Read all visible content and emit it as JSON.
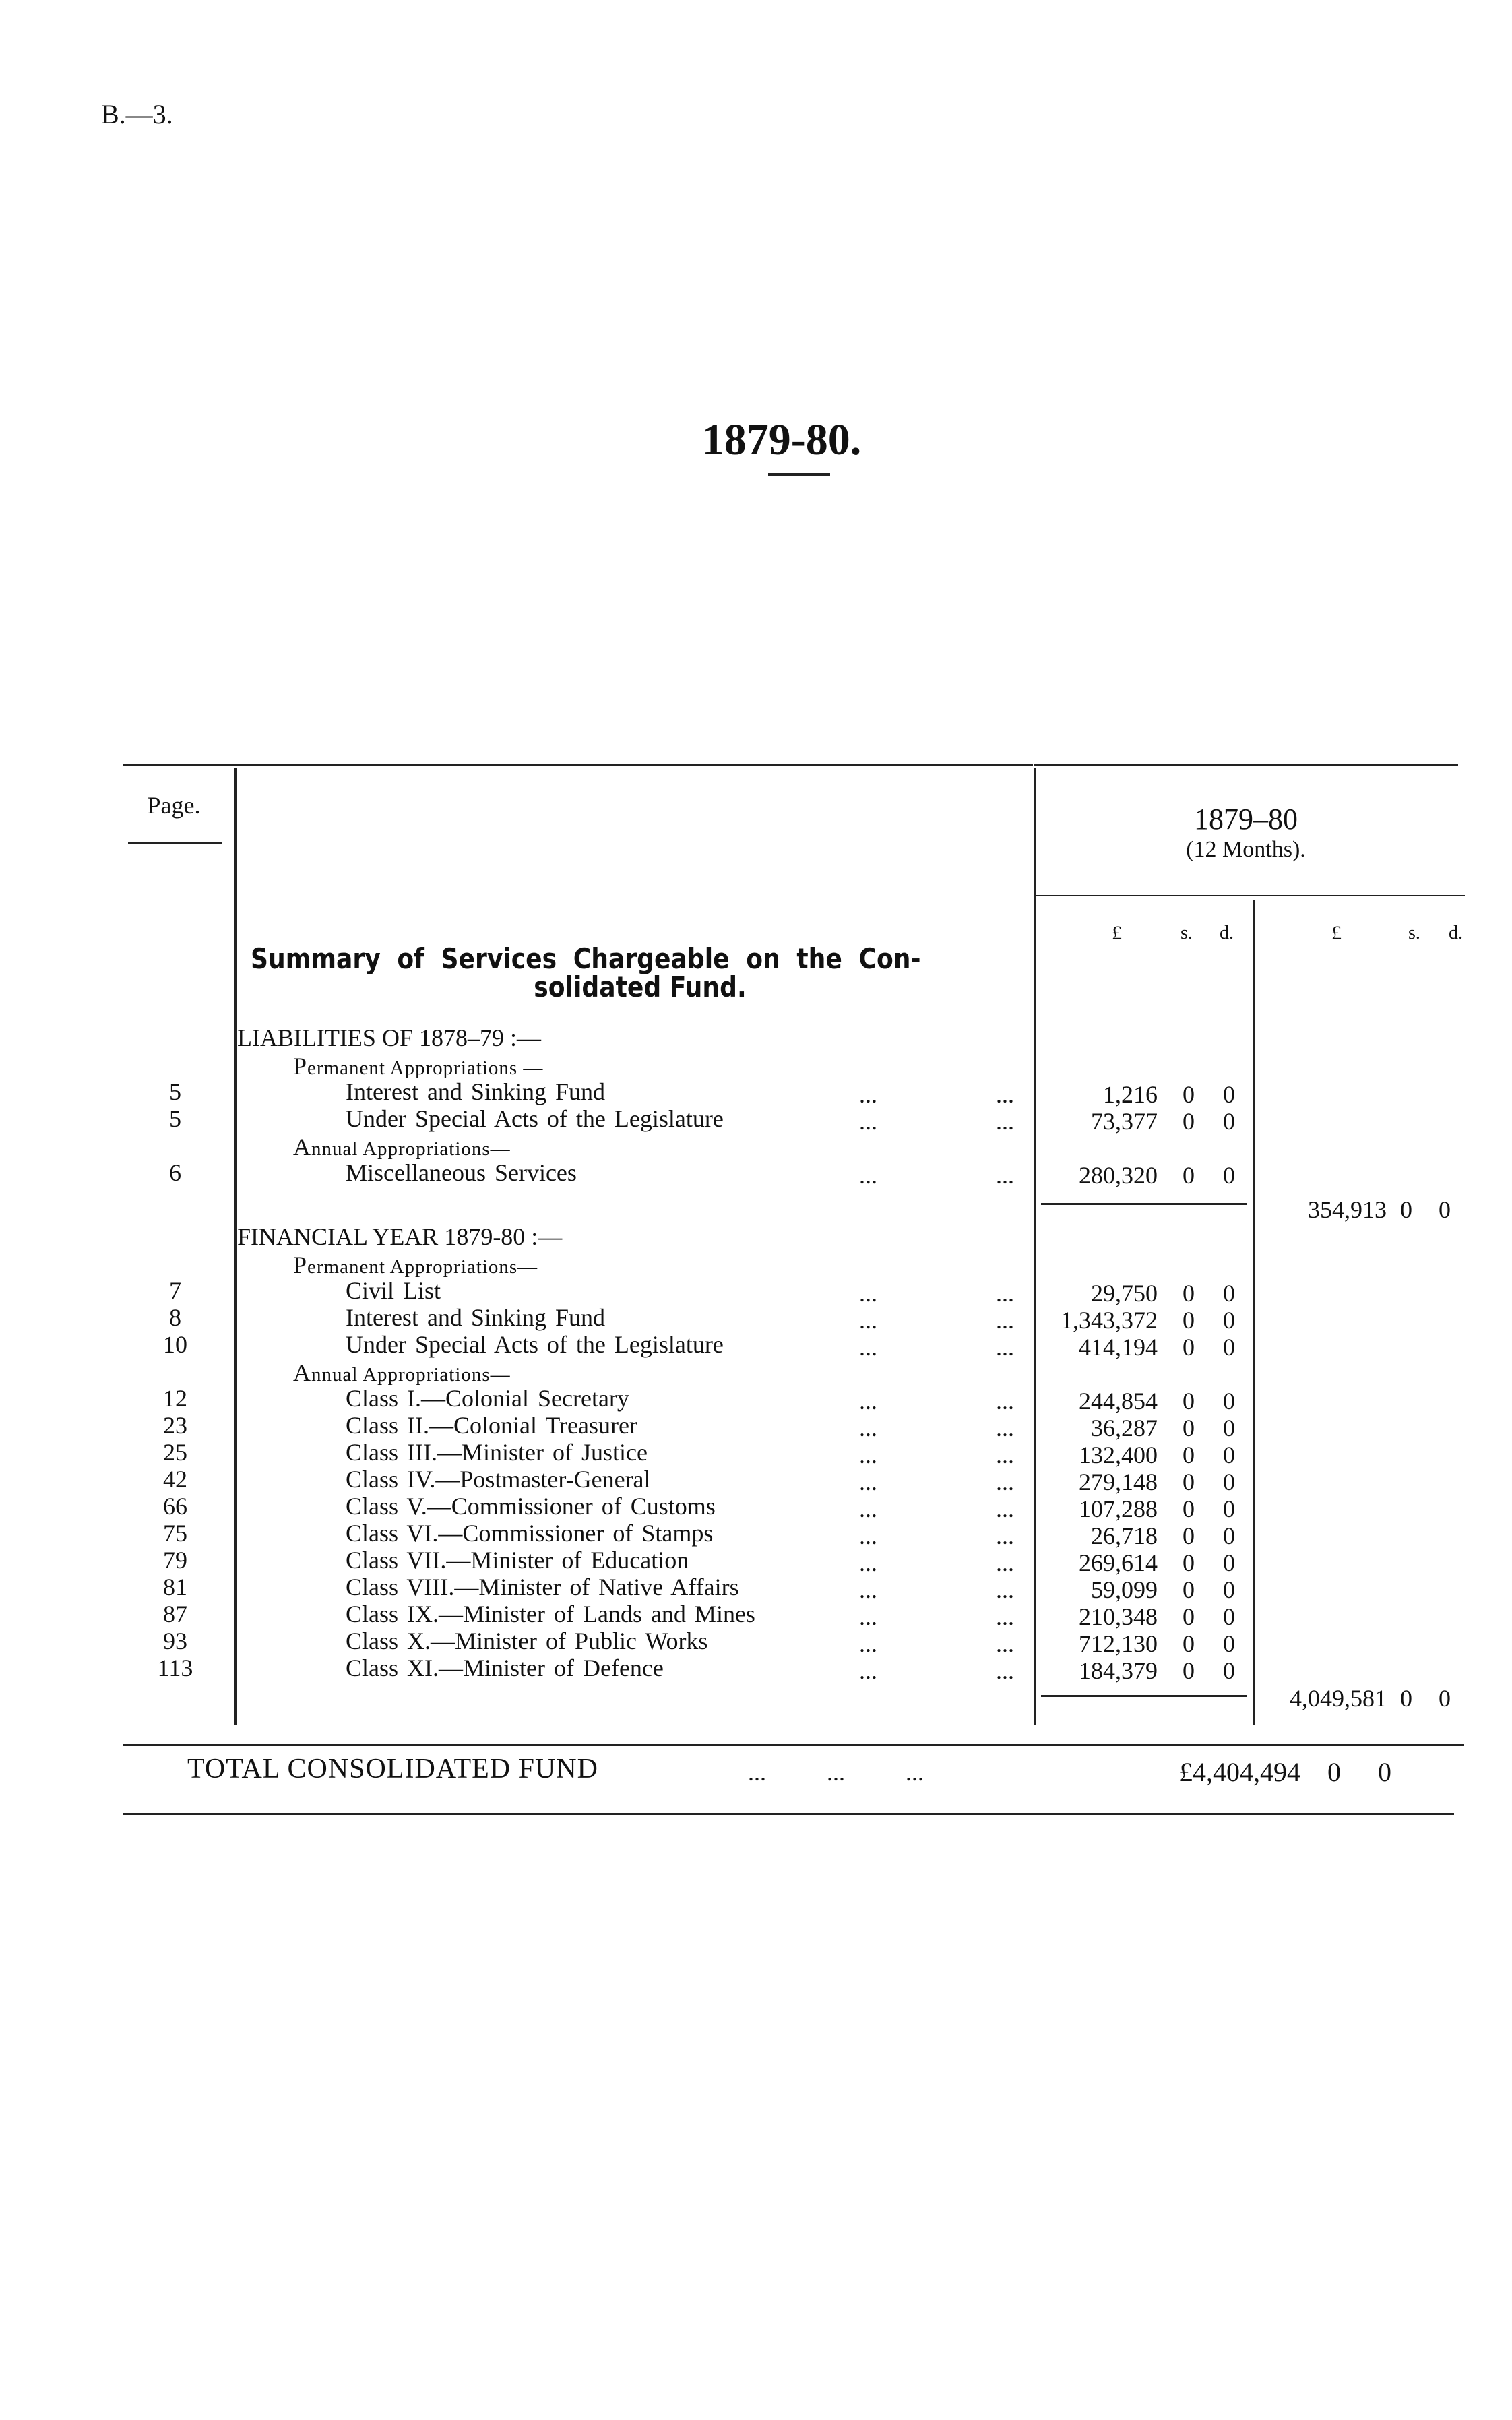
{
  "page_ref": "B.—3.",
  "title": "1879-80.",
  "table": {
    "page_header": "Page.",
    "period_header": "1879–80",
    "period_sub": "(12 Months).",
    "currency_headers": {
      "pounds": "£",
      "shillings": "s.",
      "pence": "d."
    },
    "summary_title_line1": "Summary of Services Chargeable on the Con-",
    "summary_title_line2": "solidated Fund.",
    "sections": [
      {
        "heading": "LIABILITIES OF 1878–79 :—",
        "groups": [
          {
            "heading": "Permanent Appropriations —",
            "items": [
              {
                "page": "5",
                "label": "Interest and Sinking Fund",
                "amount": "1,216",
                "s": "0",
                "d": "0"
              },
              {
                "page": "5",
                "label": "Under Special Acts of the Legislature",
                "amount": "73,377",
                "s": "0",
                "d": "0"
              }
            ]
          },
          {
            "heading": "Annual Appropriations—",
            "items": [
              {
                "page": "6",
                "label": "Miscellaneous Services",
                "amount": "280,320",
                "s": "0",
                "d": "0"
              }
            ]
          }
        ],
        "total": {
          "amount": "354,913",
          "s": "0",
          "d": "0"
        }
      },
      {
        "heading": "FINANCIAL YEAR 1879-80 :—",
        "groups": [
          {
            "heading": "Permanent Appropriations—",
            "items": [
              {
                "page": "7",
                "label": "Civil List",
                "amount": "29,750",
                "s": "0",
                "d": "0"
              },
              {
                "page": "8",
                "label": "Interest and Sinking Fund",
                "amount": "1,343,372",
                "s": "0",
                "d": "0"
              },
              {
                "page": "10",
                "label": "Under Special Acts of the Legislature",
                "amount": "414,194",
                "s": "0",
                "d": "0"
              }
            ]
          },
          {
            "heading": "Annual Appropriations—",
            "items": [
              {
                "page": "12",
                "label": "Class I.—Colonial Secretary",
                "amount": "244,854",
                "s": "0",
                "d": "0"
              },
              {
                "page": "23",
                "label": "Class II.—Colonial Treasurer",
                "amount": "36,287",
                "s": "0",
                "d": "0"
              },
              {
                "page": "25",
                "label": "Class III.—Minister of Justice",
                "amount": "132,400",
                "s": "0",
                "d": "0"
              },
              {
                "page": "42",
                "label": "Class IV.—Postmaster-General",
                "amount": "279,148",
                "s": "0",
                "d": "0"
              },
              {
                "page": "66",
                "label": "Class V.—Commissioner of Customs",
                "amount": "107,288",
                "s": "0",
                "d": "0"
              },
              {
                "page": "75",
                "label": "Class VI.—Commissioner of Stamps",
                "amount": "26,718",
                "s": "0",
                "d": "0"
              },
              {
                "page": "79",
                "label": "Class VII.—Minister of Education",
                "amount": "269,614",
                "s": "0",
                "d": "0"
              },
              {
                "page": "81",
                "label": "Class VIII.—Minister of Native Affairs",
                "amount": "59,099",
                "s": "0",
                "d": "0"
              },
              {
                "page": "87",
                "label": "Class IX.—Minister of Lands and Mines",
                "amount": "210,348",
                "s": "0",
                "d": "0"
              },
              {
                "page": "93",
                "label": "Class X.—Minister of Public Works",
                "amount": "712,130",
                "s": "0",
                "d": "0"
              },
              {
                "page": "113",
                "label": "Class XI.—Minister of Defence",
                "amount": "184,379",
                "s": "0",
                "d": "0"
              }
            ]
          }
        ],
        "total": {
          "amount": "4,049,581",
          "s": "0",
          "d": "0"
        }
      }
    ],
    "grand_total": {
      "label": "TOTAL CONSOLIDATED FUND",
      "dots": "...          ...          ...",
      "amount": "£4,404,494",
      "s": "0",
      "d": "0"
    },
    "leader_dots": "..."
  }
}
